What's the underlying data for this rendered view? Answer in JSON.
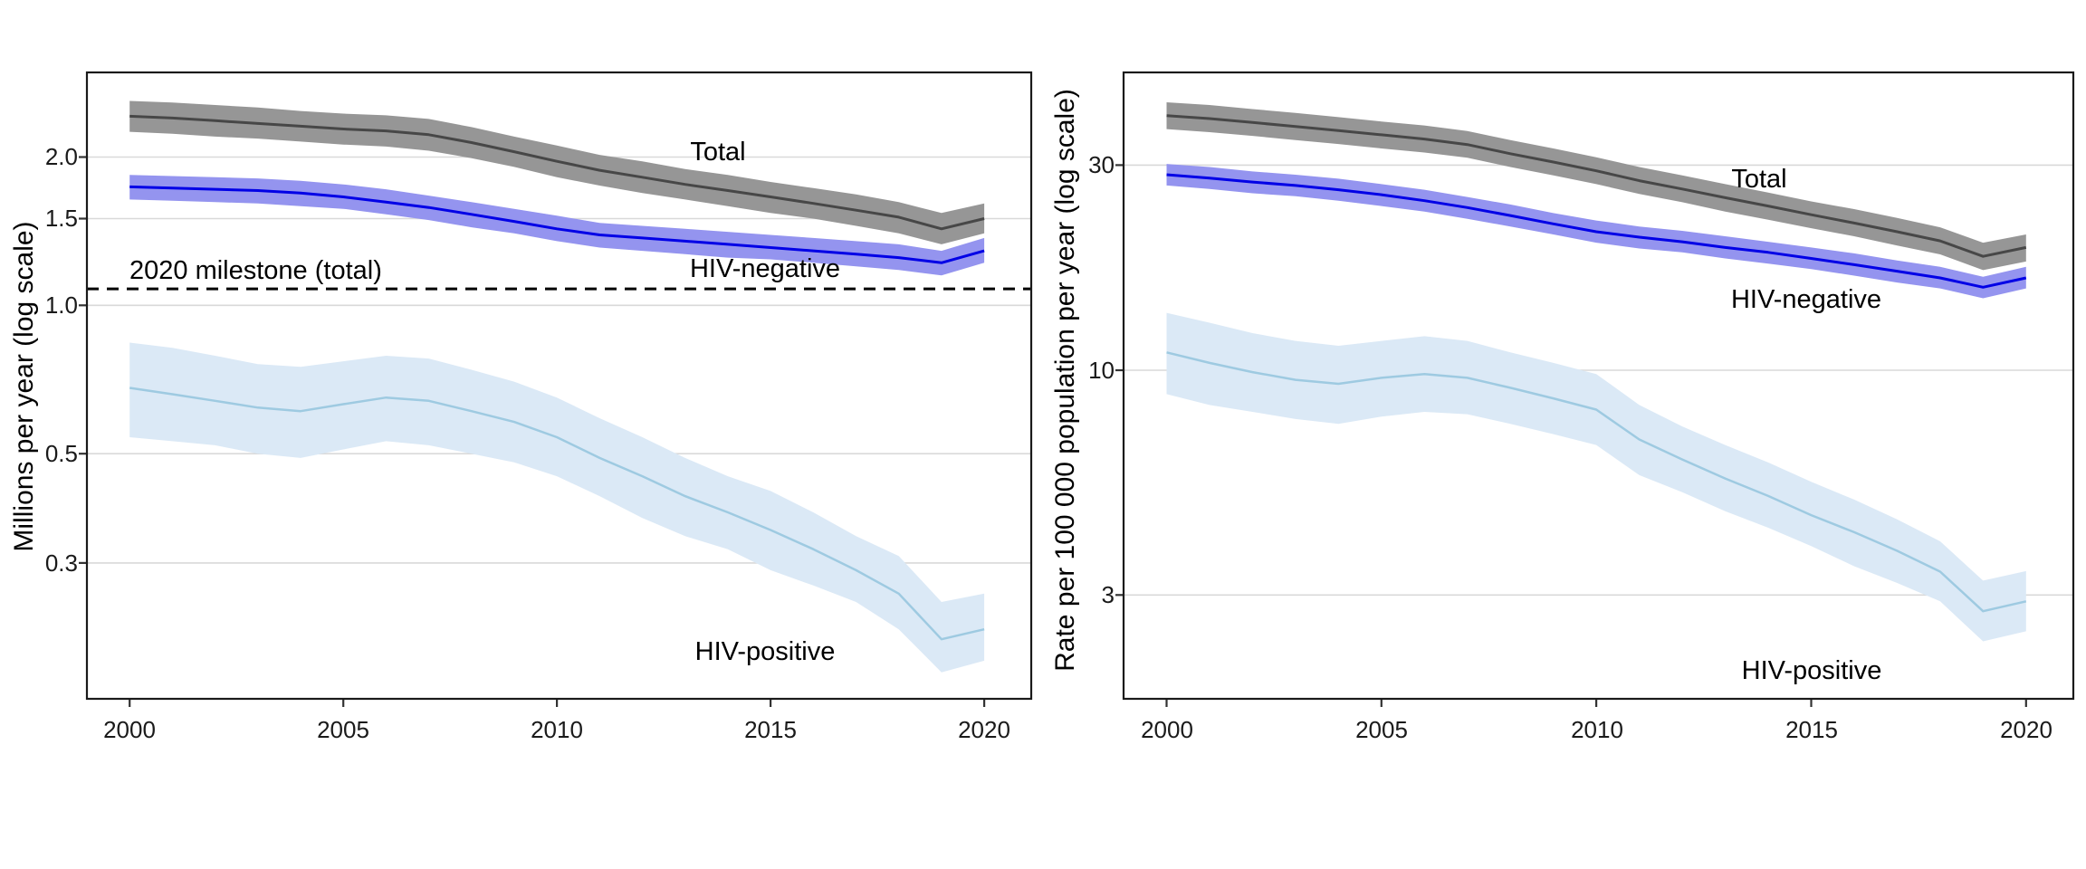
{
  "figure": {
    "description": "Two-panel line chart of TB deaths: absolute numbers and rate, 2000-2020, log scale, with 95% uncertainty ribbons",
    "background": "#ffffff"
  },
  "colors": {
    "grid": "#d9d9d9",
    "panel_border": "#1a1a1a",
    "tick": "#333333",
    "text": "#000000",
    "background": "#ffffff"
  },
  "chart_data": [
    {
      "type": "line",
      "panel": "left",
      "title": "",
      "xlabel": "",
      "ylabel": "Millions per year (log scale)",
      "y_scale": "log",
      "grid": true,
      "legend_position": "inline-labels",
      "x": [
        2000,
        2001,
        2002,
        2003,
        2004,
        2005,
        2006,
        2007,
        2008,
        2009,
        2010,
        2011,
        2012,
        2013,
        2014,
        2015,
        2016,
        2017,
        2018,
        2019,
        2020
      ],
      "xlim": [
        1999.0,
        2021.1
      ],
      "ylim": [
        0.159,
        2.97
      ],
      "x_ticks": [
        {
          "value": 2000,
          "label": "2000"
        },
        {
          "value": 2005,
          "label": "2005"
        },
        {
          "value": 2010,
          "label": "2010"
        },
        {
          "value": 2015,
          "label": "2015"
        },
        {
          "value": 2020,
          "label": "2020"
        }
      ],
      "y_ticks": [
        {
          "value": 2.0,
          "label": "2.0"
        },
        {
          "value": 1.5,
          "label": "1.5"
        },
        {
          "value": 1.0,
          "label": "1.0"
        },
        {
          "value": 0.5,
          "label": "0.5"
        },
        {
          "value": 0.3,
          "label": "0.3"
        }
      ],
      "series": [
        {
          "name": "total",
          "label": "Total",
          "line_color": "#474747",
          "band_color": "#969696",
          "line_width": 3,
          "values": [
            2.42,
            2.4,
            2.37,
            2.34,
            2.31,
            2.28,
            2.26,
            2.22,
            2.14,
            2.05,
            1.96,
            1.88,
            1.82,
            1.76,
            1.71,
            1.66,
            1.61,
            1.56,
            1.51,
            1.43,
            1.5
          ],
          "upper": [
            2.6,
            2.58,
            2.55,
            2.52,
            2.48,
            2.45,
            2.43,
            2.39,
            2.3,
            2.2,
            2.11,
            2.02,
            1.96,
            1.89,
            1.84,
            1.78,
            1.73,
            1.68,
            1.62,
            1.54,
            1.61
          ],
          "lower": [
            2.25,
            2.23,
            2.2,
            2.18,
            2.15,
            2.12,
            2.1,
            2.06,
            1.99,
            1.91,
            1.82,
            1.75,
            1.69,
            1.64,
            1.59,
            1.54,
            1.5,
            1.45,
            1.4,
            1.33,
            1.4
          ]
        },
        {
          "name": "hiv-negative",
          "label": "HIV-negative",
          "line_color": "#0000e6",
          "band_color": "#9494ef",
          "line_width": 3,
          "values": [
            1.74,
            1.73,
            1.72,
            1.71,
            1.69,
            1.66,
            1.62,
            1.58,
            1.53,
            1.48,
            1.43,
            1.39,
            1.37,
            1.35,
            1.33,
            1.31,
            1.29,
            1.27,
            1.25,
            1.22,
            1.29
          ],
          "upper": [
            1.84,
            1.83,
            1.82,
            1.81,
            1.79,
            1.76,
            1.72,
            1.67,
            1.62,
            1.57,
            1.52,
            1.47,
            1.45,
            1.43,
            1.41,
            1.39,
            1.37,
            1.35,
            1.33,
            1.29,
            1.37
          ],
          "lower": [
            1.64,
            1.63,
            1.62,
            1.61,
            1.59,
            1.57,
            1.53,
            1.49,
            1.44,
            1.4,
            1.35,
            1.31,
            1.29,
            1.27,
            1.25,
            1.24,
            1.22,
            1.2,
            1.18,
            1.15,
            1.22
          ]
        },
        {
          "name": "hiv-positive",
          "label": "HIV-positive",
          "line_color": "#9ecae1",
          "band_color": "#dbe9f6",
          "line_width": 2.5,
          "values": [
            0.68,
            0.66,
            0.64,
            0.62,
            0.61,
            0.63,
            0.65,
            0.64,
            0.61,
            0.58,
            0.54,
            0.49,
            0.45,
            0.41,
            0.38,
            0.35,
            0.32,
            0.29,
            0.26,
            0.21,
            0.22
          ],
          "upper": [
            0.84,
            0.82,
            0.79,
            0.76,
            0.75,
            0.77,
            0.79,
            0.78,
            0.74,
            0.7,
            0.65,
            0.59,
            0.54,
            0.49,
            0.45,
            0.42,
            0.38,
            0.34,
            0.31,
            0.25,
            0.26
          ],
          "lower": [
            0.54,
            0.53,
            0.52,
            0.5,
            0.49,
            0.51,
            0.53,
            0.52,
            0.5,
            0.48,
            0.45,
            0.41,
            0.37,
            0.34,
            0.32,
            0.29,
            0.27,
            0.25,
            0.22,
            0.18,
            0.19
          ]
        }
      ],
      "milestone": {
        "label": "2020 milestone (total)",
        "y": 1.08,
        "style": "dashed",
        "color": "#000000"
      }
    },
    {
      "type": "line",
      "panel": "right",
      "title": "",
      "xlabel": "",
      "ylabel": "Rate per 100 000 population per year (log scale)",
      "y_scale": "log",
      "grid": true,
      "legend_position": "inline-labels",
      "x": [
        2000,
        2001,
        2002,
        2003,
        2004,
        2005,
        2006,
        2007,
        2008,
        2009,
        2010,
        2011,
        2012,
        2013,
        2014,
        2015,
        2016,
        2017,
        2018,
        2019,
        2020
      ],
      "xlim": [
        1999.0,
        2021.1
      ],
      "ylim": [
        1.72,
        49.3
      ],
      "x_ticks": [
        {
          "value": 2000,
          "label": "2000"
        },
        {
          "value": 2005,
          "label": "2005"
        },
        {
          "value": 2010,
          "label": "2010"
        },
        {
          "value": 2015,
          "label": "2015"
        },
        {
          "value": 2020,
          "label": "2020"
        }
      ],
      "y_ticks": [
        {
          "value": 30,
          "label": "30"
        },
        {
          "value": 10,
          "label": "10"
        },
        {
          "value": 3,
          "label": "3"
        }
      ],
      "series": [
        {
          "name": "total",
          "label": "Total",
          "line_color": "#474747",
          "band_color": "#969696",
          "line_width": 3,
          "values": [
            39.1,
            38.5,
            37.7,
            36.9,
            36.1,
            35.3,
            34.5,
            33.5,
            31.9,
            30.5,
            29.1,
            27.6,
            26.4,
            25.2,
            24.1,
            23.0,
            22.0,
            21.0,
            20.0,
            18.4,
            19.3
          ],
          "upper": [
            42.0,
            41.4,
            40.5,
            39.7,
            38.8,
            37.9,
            37.1,
            36.0,
            34.3,
            32.8,
            31.3,
            29.7,
            28.4,
            27.1,
            25.9,
            24.7,
            23.7,
            22.6,
            21.5,
            19.8,
            20.7
          ],
          "lower": [
            36.4,
            35.8,
            35.1,
            34.3,
            33.6,
            32.8,
            32.1,
            31.2,
            29.7,
            28.4,
            27.1,
            25.7,
            24.6,
            23.4,
            22.4,
            21.4,
            20.5,
            19.5,
            18.6,
            17.1,
            17.9
          ]
        },
        {
          "name": "hiv-negative",
          "label": "HIV-negative",
          "line_color": "#0000e6",
          "band_color": "#9494ef",
          "line_width": 3,
          "values": [
            28.5,
            28.0,
            27.4,
            26.9,
            26.3,
            25.6,
            24.8,
            23.9,
            22.9,
            21.9,
            21.0,
            20.4,
            19.9,
            19.3,
            18.8,
            18.2,
            17.6,
            17.0,
            16.4,
            15.6,
            16.4
          ],
          "upper": [
            30.2,
            29.7,
            29.0,
            28.5,
            27.9,
            27.1,
            26.3,
            25.3,
            24.3,
            23.2,
            22.3,
            21.6,
            21.1,
            20.5,
            19.9,
            19.3,
            18.7,
            18.0,
            17.4,
            16.5,
            17.4
          ],
          "lower": [
            26.9,
            26.4,
            25.8,
            25.4,
            24.8,
            24.1,
            23.4,
            22.5,
            21.6,
            20.7,
            19.8,
            19.2,
            18.8,
            18.2,
            17.7,
            17.2,
            16.6,
            16.0,
            15.5,
            14.7,
            15.5
          ]
        },
        {
          "name": "hiv-positive",
          "label": "HIV-positive",
          "line_color": "#9ecae1",
          "band_color": "#dbe9f6",
          "line_width": 2.5,
          "values": [
            11.0,
            10.4,
            9.9,
            9.5,
            9.3,
            9.6,
            9.8,
            9.6,
            9.1,
            8.6,
            8.1,
            6.9,
            6.2,
            5.6,
            5.1,
            4.6,
            4.2,
            3.8,
            3.4,
            2.75,
            2.9
          ],
          "upper": [
            13.6,
            12.9,
            12.2,
            11.7,
            11.4,
            11.7,
            12.0,
            11.7,
            11.0,
            10.4,
            9.8,
            8.3,
            7.4,
            6.7,
            6.1,
            5.5,
            5.0,
            4.5,
            4.0,
            3.24,
            3.41
          ],
          "lower": [
            8.8,
            8.3,
            8.0,
            7.7,
            7.5,
            7.8,
            8.0,
            7.9,
            7.5,
            7.1,
            6.7,
            5.7,
            5.2,
            4.7,
            4.3,
            3.9,
            3.5,
            3.2,
            2.9,
            2.34,
            2.47
          ]
        }
      ]
    }
  ]
}
